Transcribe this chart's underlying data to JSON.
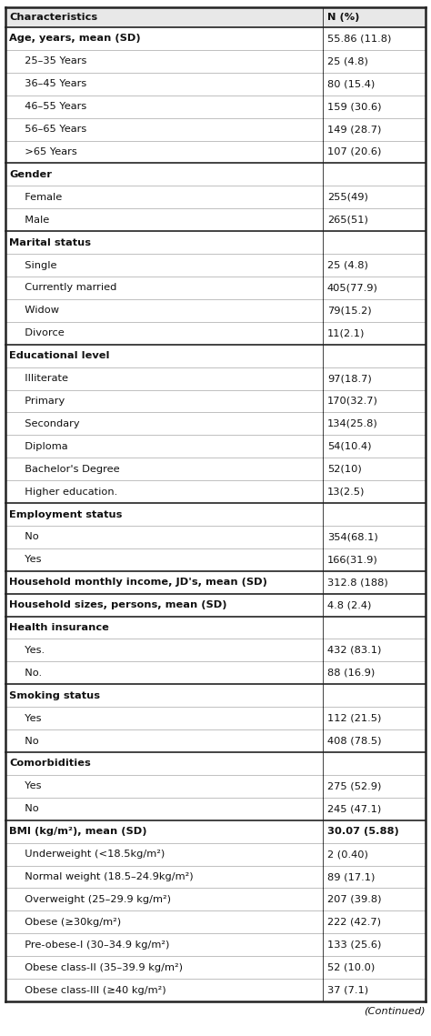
{
  "rows": [
    {
      "label": "Characteristics",
      "value": "N (%)",
      "bold_label": true,
      "bold_value": true,
      "is_header": true,
      "indent": 0,
      "section_start": false
    },
    {
      "label": "Age, years, mean (SD)",
      "value": "55.86 (11.8)",
      "bold_label": true,
      "bold_value": false,
      "is_header": false,
      "indent": 0,
      "section_start": true
    },
    {
      "label": "  25–35 Years",
      "value": "25 (4.8)",
      "bold_label": false,
      "bold_value": false,
      "is_header": false,
      "indent": 1,
      "section_start": false
    },
    {
      "label": "  36–45 Years",
      "value": "80 (15.4)",
      "bold_label": false,
      "bold_value": false,
      "is_header": false,
      "indent": 1,
      "section_start": false
    },
    {
      "label": "  46–55 Years",
      "value": "159 (30.6)",
      "bold_label": false,
      "bold_value": false,
      "is_header": false,
      "indent": 1,
      "section_start": false
    },
    {
      "label": "  56–65 Years",
      "value": "149 (28.7)",
      "bold_label": false,
      "bold_value": false,
      "is_header": false,
      "indent": 1,
      "section_start": false
    },
    {
      "label": "  >65 Years",
      "value": "107 (20.6)",
      "bold_label": false,
      "bold_value": false,
      "is_header": false,
      "indent": 1,
      "section_start": false
    },
    {
      "label": "Gender",
      "value": "",
      "bold_label": true,
      "bold_value": false,
      "is_header": false,
      "indent": 0,
      "section_start": true
    },
    {
      "label": "  Female",
      "value": "255(49)",
      "bold_label": false,
      "bold_value": false,
      "is_header": false,
      "indent": 1,
      "section_start": false
    },
    {
      "label": "  Male",
      "value": "265(51)",
      "bold_label": false,
      "bold_value": false,
      "is_header": false,
      "indent": 1,
      "section_start": false
    },
    {
      "label": "Marital status",
      "value": "",
      "bold_label": true,
      "bold_value": false,
      "is_header": false,
      "indent": 0,
      "section_start": true
    },
    {
      "label": "  Single",
      "value": "25 (4.8)",
      "bold_label": false,
      "bold_value": false,
      "is_header": false,
      "indent": 1,
      "section_start": false
    },
    {
      "label": "  Currently married",
      "value": "405(77.9)",
      "bold_label": false,
      "bold_value": false,
      "is_header": false,
      "indent": 1,
      "section_start": false
    },
    {
      "label": "  Widow",
      "value": "79(15.2)",
      "bold_label": false,
      "bold_value": false,
      "is_header": false,
      "indent": 1,
      "section_start": false
    },
    {
      "label": "  Divorce",
      "value": "11(2.1)",
      "bold_label": false,
      "bold_value": false,
      "is_header": false,
      "indent": 1,
      "section_start": false
    },
    {
      "label": "Educational level",
      "value": "",
      "bold_label": true,
      "bold_value": false,
      "is_header": false,
      "indent": 0,
      "section_start": true
    },
    {
      "label": "  Illiterate",
      "value": "97(18.7)",
      "bold_label": false,
      "bold_value": false,
      "is_header": false,
      "indent": 1,
      "section_start": false
    },
    {
      "label": "  Primary",
      "value": "170(32.7)",
      "bold_label": false,
      "bold_value": false,
      "is_header": false,
      "indent": 1,
      "section_start": false
    },
    {
      "label": "  Secondary",
      "value": "134(25.8)",
      "bold_label": false,
      "bold_value": false,
      "is_header": false,
      "indent": 1,
      "section_start": false
    },
    {
      "label": "  Diploma",
      "value": "54(10.4)",
      "bold_label": false,
      "bold_value": false,
      "is_header": false,
      "indent": 1,
      "section_start": false
    },
    {
      "label": "  Bachelor's Degree",
      "value": "52(10)",
      "bold_label": false,
      "bold_value": false,
      "is_header": false,
      "indent": 1,
      "section_start": false
    },
    {
      "label": "  Higher education.",
      "value": "13(2.5)",
      "bold_label": false,
      "bold_value": false,
      "is_header": false,
      "indent": 1,
      "section_start": false
    },
    {
      "label": "Employment status",
      "value": "",
      "bold_label": true,
      "bold_value": false,
      "is_header": false,
      "indent": 0,
      "section_start": true
    },
    {
      "label": "  No",
      "value": "354(68.1)",
      "bold_label": false,
      "bold_value": false,
      "is_header": false,
      "indent": 1,
      "section_start": false
    },
    {
      "label": "  Yes",
      "value": "166(31.9)",
      "bold_label": false,
      "bold_value": false,
      "is_header": false,
      "indent": 1,
      "section_start": false
    },
    {
      "label": "Household monthly income, JD's, mean (SD)",
      "value": "312.8 (188)",
      "bold_label": true,
      "bold_value": false,
      "is_header": false,
      "indent": 0,
      "section_start": true,
      "single_row": true
    },
    {
      "label": "Household sizes, persons, mean (SD)",
      "value": "4.8 (2.4)",
      "bold_label": true,
      "bold_value": false,
      "is_header": false,
      "indent": 0,
      "section_start": true,
      "single_row": true
    },
    {
      "label": "Health insurance",
      "value": "",
      "bold_label": true,
      "bold_value": false,
      "is_header": false,
      "indent": 0,
      "section_start": true
    },
    {
      "label": "  Yes.",
      "value": "432 (83.1)",
      "bold_label": false,
      "bold_value": false,
      "is_header": false,
      "indent": 1,
      "section_start": false
    },
    {
      "label": "  No.",
      "value": "88 (16.9)",
      "bold_label": false,
      "bold_value": false,
      "is_header": false,
      "indent": 1,
      "section_start": false
    },
    {
      "label": "Smoking status",
      "value": "",
      "bold_label": true,
      "bold_value": false,
      "is_header": false,
      "indent": 0,
      "section_start": true
    },
    {
      "label": "  Yes",
      "value": "112 (21.5)",
      "bold_label": false,
      "bold_value": false,
      "is_header": false,
      "indent": 1,
      "section_start": false
    },
    {
      "label": "  No",
      "value": "408 (78.5)",
      "bold_label": false,
      "bold_value": false,
      "is_header": false,
      "indent": 1,
      "section_start": false
    },
    {
      "label": "Comorbidities",
      "value": "",
      "bold_label": true,
      "bold_value": false,
      "is_header": false,
      "indent": 0,
      "section_start": true
    },
    {
      "label": "  Yes",
      "value": "275 (52.9)",
      "bold_label": false,
      "bold_value": false,
      "is_header": false,
      "indent": 1,
      "section_start": false
    },
    {
      "label": "  No",
      "value": "245 (47.1)",
      "bold_label": false,
      "bold_value": false,
      "is_header": false,
      "indent": 1,
      "section_start": false
    },
    {
      "label": "BMI (kg/m²), mean (SD)",
      "value": "30.07 (5.88)",
      "bold_label": true,
      "bold_value": true,
      "is_header": false,
      "indent": 0,
      "section_start": true
    },
    {
      "label": "  Underweight (<18.5kg/m²)",
      "value": "2 (0.40)",
      "bold_label": false,
      "bold_value": false,
      "is_header": false,
      "indent": 1,
      "section_start": false
    },
    {
      "label": "  Normal weight (18.5–24.9kg/m²)",
      "value": "89 (17.1)",
      "bold_label": false,
      "bold_value": false,
      "is_header": false,
      "indent": 1,
      "section_start": false
    },
    {
      "label": "  Overweight (25–29.9 kg/m²)",
      "value": "207 (39.8)",
      "bold_label": false,
      "bold_value": false,
      "is_header": false,
      "indent": 1,
      "section_start": false
    },
    {
      "label": "  Obese (≥30kg/m²)",
      "value": "222 (42.7)",
      "bold_label": false,
      "bold_value": false,
      "is_header": false,
      "indent": 1,
      "section_start": false
    },
    {
      "label": "  Pre-obese-I (30–34.9 kg/m²)",
      "value": "133 (25.6)",
      "bold_label": false,
      "bold_value": false,
      "is_header": false,
      "indent": 1,
      "section_start": false
    },
    {
      "label": "  Obese class-II (35–39.9 kg/m²)",
      "value": "52 (10.0)",
      "bold_label": false,
      "bold_value": false,
      "is_header": false,
      "indent": 1,
      "section_start": false
    },
    {
      "label": "  Obese class-III (≥40 kg/m²)",
      "value": "37 (7.1)",
      "bold_label": false,
      "bold_value": false,
      "is_header": false,
      "indent": 1,
      "section_start": false
    }
  ],
  "col_split": 0.755,
  "font_size": 8.2,
  "header_bg": "#e8e8e8",
  "bg_color": "#ffffff",
  "border_color": "#222222",
  "text_color": "#111111",
  "continued_text": "(Continued)",
  "fig_width": 4.74,
  "fig_height": 11.39,
  "dpi": 100
}
